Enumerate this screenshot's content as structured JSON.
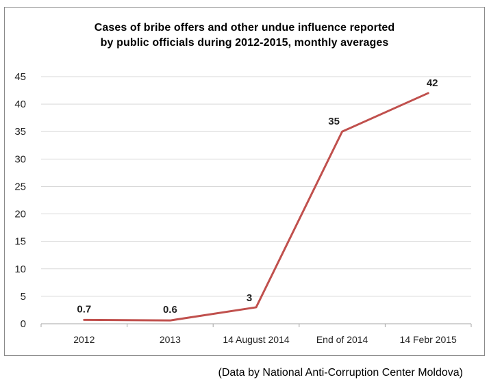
{
  "chart_data": {
    "type": "line",
    "title_lines": [
      "Cases of bribe offers and other undue influence reported",
      "by public officials during 2012-2015, monthly averages"
    ],
    "categories": [
      "2012",
      "2013",
      "14 August 2014",
      "End of 2014",
      "14 Febr 2015"
    ],
    "series": [
      {
        "values": [
          0.7,
          0.6,
          3,
          35,
          42
        ],
        "data_labels": [
          "0.7",
          "0.6",
          "3",
          "35",
          "42"
        ]
      }
    ],
    "y_ticks": [
      "0",
      "5",
      "10",
      "15",
      "20",
      "25",
      "30",
      "35",
      "40",
      "45"
    ],
    "ylim": [
      0,
      45
    ],
    "y_tick_step": 5,
    "grid": true,
    "legend": "none",
    "line_color": "#c0504d",
    "grid_color": "#d9d9d9",
    "axis_color": "#a6a6a6"
  },
  "footer": {
    "source": "(Data by National Anti-Corruption Center Moldova)"
  }
}
